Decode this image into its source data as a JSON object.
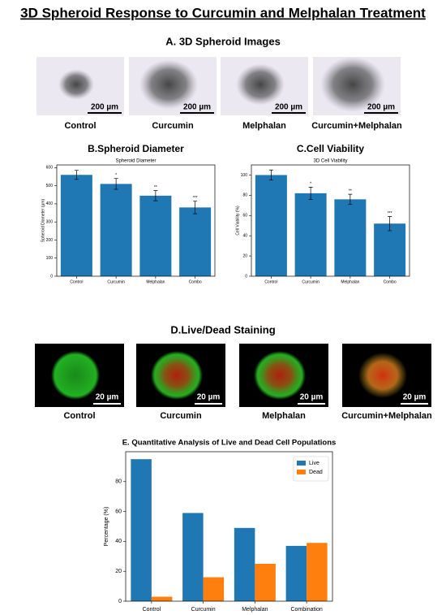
{
  "title": "3D Spheroid Response to Curcumin and Melphalan Treatment",
  "panel_a": {
    "title": "A. 3D Spheroid Images",
    "images": [
      {
        "label": "Control",
        "scale": "200 µm"
      },
      {
        "label": "Curcumin",
        "scale": "200 µm"
      },
      {
        "label": "Melphalan",
        "scale": "200 µm"
      },
      {
        "label": "Curcumin+Melphalan",
        "scale": "200 µm"
      }
    ]
  },
  "panel_d": {
    "title": "D.Live/Dead Staining",
    "images": [
      {
        "label": "Control",
        "scale": "20 µm"
      },
      {
        "label": "Curcumin",
        "scale": "20 µm"
      },
      {
        "label": "Melphalan",
        "scale": "20 µm"
      },
      {
        "label": "Curcumin+Melphalan",
        "scale": "20 µm"
      }
    ]
  },
  "chart_data": [
    {
      "type": "bar",
      "title": "B.Spheroid Diameter",
      "subtitle": "Spheroid Diameter",
      "y_label": "Spheroid Diameter (µm)",
      "categories": [
        "Control",
        "Curcumin",
        "Melphalan",
        "Combo"
      ],
      "values": [
        560,
        510,
        445,
        380
      ],
      "errors": [
        25,
        30,
        28,
        35
      ],
      "significance": [
        null,
        "*",
        "**",
        "***"
      ],
      "color": "#1f77b4",
      "ylim": [
        0,
        615
      ],
      "yticks": [
        0,
        100,
        200,
        300,
        400,
        500,
        600
      ]
    },
    {
      "type": "bar",
      "title": "C.Cell Viability",
      "subtitle": "3D Cell Viability",
      "y_label": "Cell Viability (%)",
      "categories": [
        "Control",
        "Curcumin",
        "Melphalan",
        "Combo"
      ],
      "values": [
        100,
        82,
        76,
        52
      ],
      "errors": [
        5,
        6,
        5,
        7
      ],
      "significance": [
        null,
        "*",
        "**",
        "***"
      ],
      "color": "#1f77b4",
      "ylim": [
        0,
        110
      ],
      "yticks": [
        0,
        20,
        40,
        60,
        80,
        100
      ]
    },
    {
      "type": "grouped-bar",
      "title": "E. Quantitative Analysis of Live and Dead Cell Populations",
      "y_label": "Percentage (%)",
      "categories": [
        "Control",
        "Curcumin",
        "Melphalan",
        "Combination"
      ],
      "series": [
        {
          "name": "Live",
          "color": "#1f77b4",
          "values": [
            95,
            59,
            49,
            37
          ]
        },
        {
          "name": "Dead",
          "color": "#ff7f0e",
          "values": [
            3,
            16,
            25,
            39
          ]
        }
      ],
      "ylim": [
        0,
        100
      ],
      "yticks": [
        0,
        20,
        40,
        60,
        80
      ],
      "legend": "upper right"
    }
  ]
}
